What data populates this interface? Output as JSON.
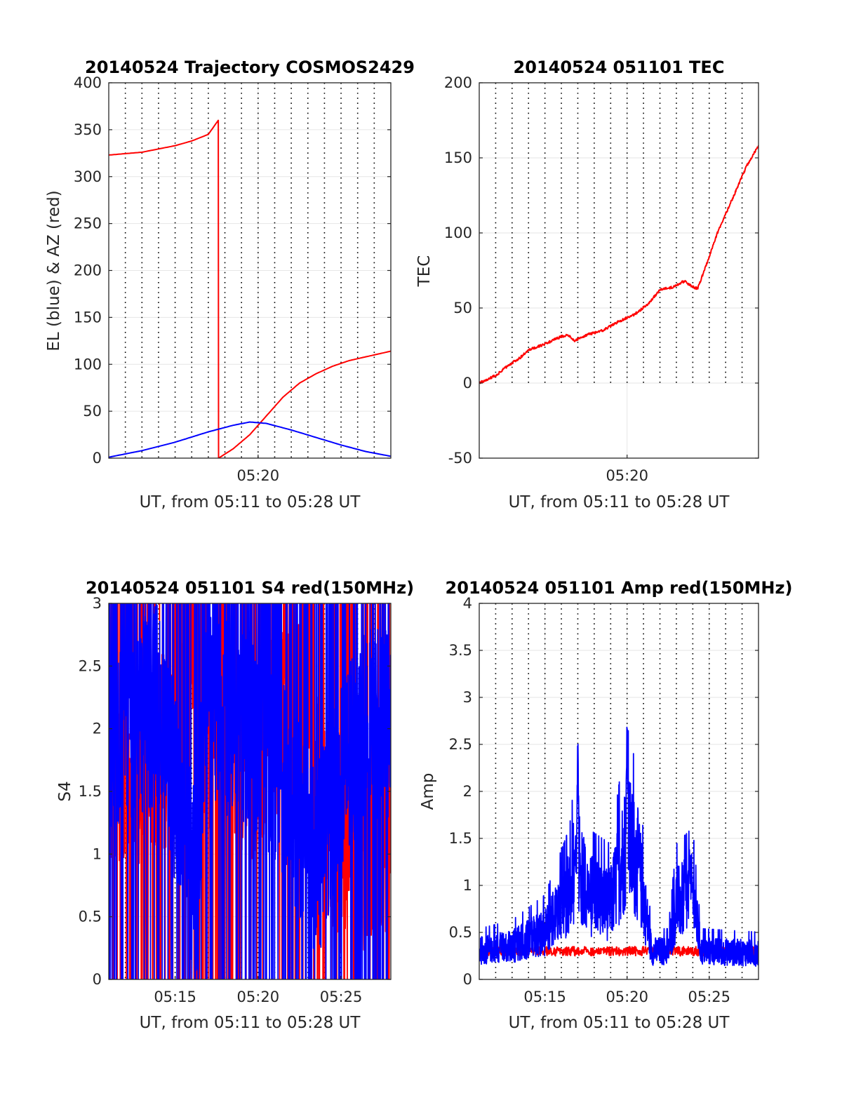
{
  "chart_data": [
    {
      "type": "line",
      "title": "20140524 Trajectory COSMOS2429",
      "xlabel": "UT, from 05:11 to 05:28 UT",
      "ylabel": "EL (blue) & AZ (red)",
      "xlim": [
        0,
        17
      ],
      "ylim": [
        0,
        400
      ],
      "xticks": [
        {
          "t": 9,
          "label": "05:20"
        }
      ],
      "yticks": [
        0,
        50,
        100,
        150,
        200,
        250,
        300,
        350,
        400
      ],
      "grid": "dotted vertical lines at minor intervals",
      "series": [
        {
          "color": "#ff0000",
          "kind": "smooth",
          "points": [
            [
              0,
              323
            ],
            [
              2,
              326
            ],
            [
              4,
              333
            ],
            [
              5,
              338
            ],
            [
              6,
              345
            ],
            [
              6.6,
              360
            ],
            [
              6.62,
              0
            ],
            [
              7.5,
              10
            ],
            [
              8.5,
              25
            ],
            [
              9.5,
              45
            ],
            [
              10.5,
              65
            ],
            [
              11.5,
              80
            ],
            [
              12.5,
              90
            ],
            [
              13.5,
              98
            ],
            [
              14.5,
              104
            ],
            [
              15.5,
              108
            ],
            [
              17,
              114
            ]
          ]
        },
        {
          "color": "#0000ff",
          "kind": "smooth",
          "points": [
            [
              0,
              1
            ],
            [
              2,
              8
            ],
            [
              4,
              17
            ],
            [
              6,
              28
            ],
            [
              7.5,
              35
            ],
            [
              8.5,
              38.5
            ],
            [
              9.5,
              37
            ],
            [
              11,
              30
            ],
            [
              12.5,
              22
            ],
            [
              14,
              14
            ],
            [
              15.5,
              7
            ],
            [
              17,
              2
            ]
          ]
        }
      ]
    },
    {
      "type": "line",
      "title": "20140524 051101 TEC",
      "xlabel": "UT, from 05:11 to 05:28 UT",
      "ylabel": "TEC",
      "xlim": [
        0,
        17
      ],
      "ylim": [
        -50,
        200
      ],
      "xticks": [
        {
          "t": 9,
          "label": "05:20"
        }
      ],
      "yticks": [
        -50,
        0,
        50,
        100,
        150,
        200
      ],
      "grid": "dotted vertical lines above 0 up to 200",
      "series": [
        {
          "color": "#ff0000",
          "kind": "noisy",
          "noise": 0.8,
          "points": [
            [
              0,
              0
            ],
            [
              1,
              5
            ],
            [
              1.8,
              12
            ],
            [
              2.5,
              17
            ],
            [
              3,
              22
            ],
            [
              4,
              26
            ],
            [
              5,
              31
            ],
            [
              5.4,
              32
            ],
            [
              5.8,
              28
            ],
            [
              6.5,
              32
            ],
            [
              7.5,
              35
            ],
            [
              8.5,
              41
            ],
            [
              9.5,
              46
            ],
            [
              10.3,
              53
            ],
            [
              11,
              62
            ],
            [
              11.8,
              64
            ],
            [
              12.5,
              68
            ],
            [
              13,
              64
            ],
            [
              13.3,
              63
            ],
            [
              13.8,
              78
            ],
            [
              14.5,
              100
            ],
            [
              15.5,
              125
            ],
            [
              16.3,
              145
            ],
            [
              17,
              158
            ]
          ]
        }
      ]
    },
    {
      "type": "line",
      "title": "20140524 051101 S4 red(150MHz)",
      "xlabel": "UT, from 05:11 to 05:28 UT",
      "ylabel": "S4",
      "xlim": [
        0,
        17
      ],
      "ylim": [
        0,
        3
      ],
      "xticks": [
        {
          "t": 4,
          "label": "05:15"
        },
        {
          "t": 9,
          "label": "05:20"
        },
        {
          "t": 14,
          "label": "05:25"
        }
      ],
      "yticks": [
        0,
        0.5,
        1,
        1.5,
        2,
        2.5,
        3
      ],
      "grid": "dotted vertical lines",
      "series": [
        {
          "color": "#ff0000",
          "kind": "spiky",
          "levels": [
            [
              0,
              1.6
            ],
            [
              3,
              1.8
            ],
            [
              6,
              2
            ],
            [
              9,
              1.7
            ],
            [
              11,
              2.3
            ],
            [
              12.5,
              1.5
            ],
            [
              14,
              1
            ],
            [
              16,
              1
            ],
            [
              17,
              1.2
            ]
          ]
        },
        {
          "color": "#0000ff",
          "kind": "spiky",
          "levels": [
            [
              0,
              2
            ],
            [
              3,
              2.2
            ],
            [
              5.3,
              0.7
            ],
            [
              5.8,
              2.2
            ],
            [
              8.5,
              2
            ],
            [
              10.5,
              1.6
            ],
            [
              12.5,
              0.9
            ],
            [
              14,
              1.6
            ],
            [
              15.5,
              2
            ],
            [
              17,
              2
            ]
          ]
        }
      ]
    },
    {
      "type": "line",
      "title": "20140524 051101 Amp red(150MHz)",
      "xlabel": "UT, from 05:11 to 05:28 UT",
      "ylabel": "Amp",
      "xlim": [
        0,
        17
      ],
      "ylim": [
        0,
        4
      ],
      "xticks": [
        {
          "t": 4,
          "label": "05:15"
        },
        {
          "t": 9,
          "label": "05:20"
        },
        {
          "t": 14,
          "label": "05:25"
        }
      ],
      "yticks": [
        0,
        0.5,
        1,
        1.5,
        2,
        2.5,
        3,
        3.5,
        4
      ],
      "grid": "dotted vertical lines",
      "series": [
        {
          "color": "#ff0000",
          "kind": "noisy",
          "noise": 0.05,
          "points": [
            [
              0,
              0.3
            ],
            [
              17,
              0.3
            ]
          ]
        },
        {
          "color": "#0000ff",
          "kind": "spiky",
          "spike_prob": 0.04,
          "peaks": [
            [
              6,
              2.75
            ],
            [
              9,
              3.1
            ],
            [
              12.8,
              1.45
            ]
          ],
          "levels": [
            [
              0,
              0.3
            ],
            [
              2,
              0.35
            ],
            [
              4,
              0.5
            ],
            [
              5.5,
              0.9
            ],
            [
              6,
              1.4
            ],
            [
              6.5,
              0.9
            ],
            [
              8,
              0.8
            ],
            [
              9,
              1.5
            ],
            [
              9.7,
              1.2
            ],
            [
              10.5,
              0.3
            ],
            [
              11.5,
              0.3
            ],
            [
              12,
              0.8
            ],
            [
              13,
              0.9
            ],
            [
              13.5,
              0.3
            ],
            [
              17,
              0.28
            ]
          ]
        }
      ]
    }
  ]
}
